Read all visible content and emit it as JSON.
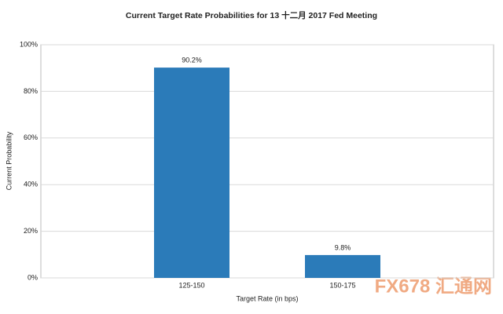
{
  "chart_data": {
    "type": "bar",
    "title": "Current Target Rate Probabilities for 13 十二月 2017  Fed Meeting",
    "x_label": "Target Rate (in bps)",
    "y_label": "Current Probability",
    "categories": [
      "125-150",
      "150-175"
    ],
    "values": [
      90.2,
      9.8
    ],
    "value_labels": [
      "90.2%",
      "9.8%"
    ],
    "color": "#2b7bb9",
    "ylim": [
      0,
      100
    ],
    "yticks": [
      {
        "value": 0,
        "label": "0%"
      },
      {
        "value": 20,
        "label": "20%"
      },
      {
        "value": 40,
        "label": "40%"
      },
      {
        "value": 60,
        "label": "60%"
      },
      {
        "value": 80,
        "label": "80%"
      },
      {
        "value": 100,
        "label": "100%"
      }
    ],
    "grid": true,
    "watermark": "FX678 汇通网"
  }
}
